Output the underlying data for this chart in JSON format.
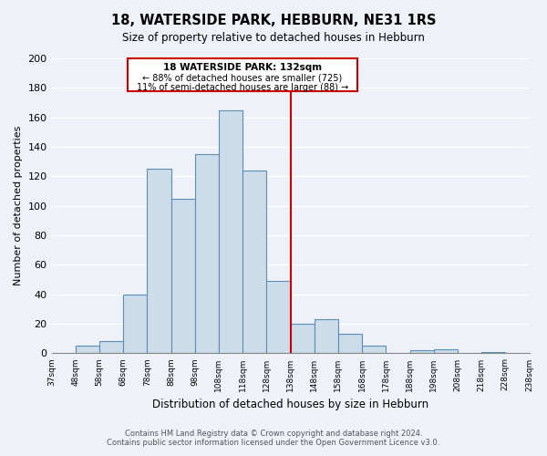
{
  "title": "18, WATERSIDE PARK, HEBBURN, NE31 1RS",
  "subtitle": "Size of property relative to detached houses in Hebburn",
  "xlabel": "Distribution of detached houses by size in Hebburn",
  "ylabel": "Number of detached properties",
  "bin_edges": [
    37,
    48,
    58,
    68,
    78,
    88,
    98,
    108,
    118,
    128,
    138,
    148,
    158,
    168,
    178,
    188,
    198,
    208,
    218,
    228,
    238
  ],
  "bin_labels": [
    "37sqm",
    "48sqm",
    "58sqm",
    "68sqm",
    "78sqm",
    "88sqm",
    "98sqm",
    "108sqm",
    "118sqm",
    "128sqm",
    "138sqm",
    "148sqm",
    "158sqm",
    "168sqm",
    "178sqm",
    "188sqm",
    "198sqm",
    "208sqm",
    "218sqm",
    "228sqm",
    "238sqm"
  ],
  "bar_values": [
    0,
    5,
    8,
    40,
    125,
    105,
    135,
    165,
    124,
    49,
    20,
    23,
    13,
    5,
    0,
    2,
    3,
    0,
    1,
    0
  ],
  "bar_color": "#ccdce8",
  "bar_edge_color": "#5b8db8",
  "vline_x": 9,
  "vline_color": "#cc0000",
  "annotation_title": "18 WATERSIDE PARK: 132sqm",
  "annotation_line1": "← 88% of detached houses are smaller (725)",
  "annotation_line2": "11% of semi-detached houses are larger (88) →",
  "annotation_box_color": "#ffffff",
  "annotation_box_edge": "#cc0000",
  "ylim": [
    0,
    200
  ],
  "yticks": [
    0,
    20,
    40,
    60,
    80,
    100,
    120,
    140,
    160,
    180,
    200
  ],
  "footer1": "Contains HM Land Registry data © Crown copyright and database right 2024.",
  "footer2": "Contains public sector information licensed under the Open Government Licence v3.0.",
  "bg_color": "#eef2f8",
  "plot_bg_color": "#eef2f8",
  "grid_color": "#ffffff"
}
